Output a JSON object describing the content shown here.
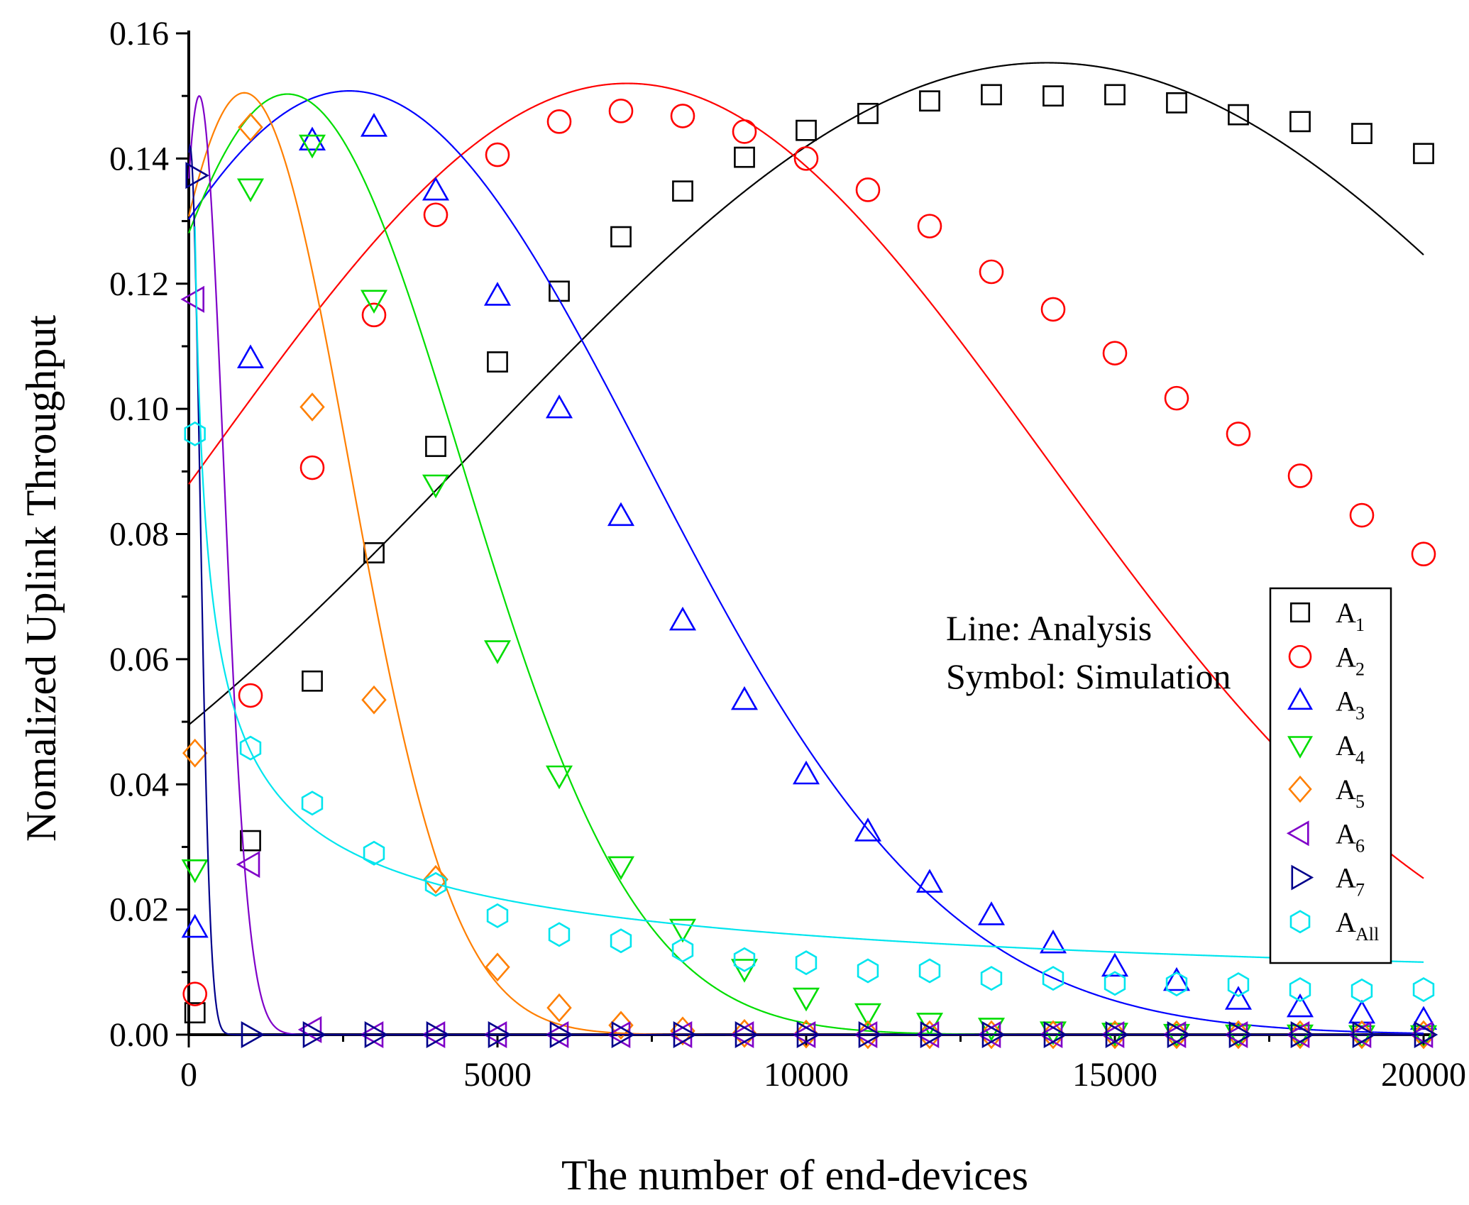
{
  "chart_data": {
    "type": "line",
    "title": "",
    "xlabel": "The number of end-devices",
    "ylabel": "Nomalized Uplink Throughput",
    "xlim": [
      0,
      20000
    ],
    "ylim": [
      0,
      0.16
    ],
    "xticks": [
      0,
      5000,
      10000,
      15000,
      20000
    ],
    "xtick_labels": [
      "0",
      "5000",
      "10000",
      "15000",
      "20000"
    ],
    "yticks": [
      0,
      0.02,
      0.04,
      0.06,
      0.08,
      0.1,
      0.12,
      0.14,
      0.16
    ],
    "ytick_labels": [
      "0.00",
      "0.02",
      "0.04",
      "0.06",
      "0.08",
      "0.10",
      "0.12",
      "0.14",
      "0.16"
    ],
    "legend_position": "right",
    "annotations": [
      "Line: Analysis",
      "Symbol: Simulation"
    ],
    "series": [
      {
        "name": "A1",
        "base": "A",
        "sub": "1",
        "color": "#000000",
        "marker": "square",
        "analysis": {
          "kind": "gauss",
          "peak": 0.1553,
          "center": 13900,
          "width": 13000,
          "cutoff": 0
        },
        "sim_x": [
          100,
          1000,
          2000,
          3000,
          4000,
          5000,
          6000,
          7000,
          8000,
          9000,
          10000,
          11000,
          12000,
          13000,
          14000,
          15000,
          16000,
          17000,
          18000,
          19000,
          20000
        ],
        "sim_y": [
          0.0035,
          0.031,
          0.0565,
          0.077,
          0.094,
          0.1075,
          0.1188,
          0.1275,
          0.1348,
          0.1402,
          0.1445,
          0.1472,
          0.1492,
          0.1502,
          0.15,
          0.1502,
          0.1489,
          0.147,
          0.1459,
          0.144,
          0.1408
        ]
      },
      {
        "name": "A2",
        "base": "A",
        "sub": "2",
        "color": "#ff0000",
        "marker": "circle",
        "analysis": {
          "kind": "gauss",
          "peak": 0.152,
          "center": 7100,
          "width": 9600,
          "cutoff": 0
        },
        "sim_x": [
          100,
          1000,
          2000,
          3000,
          4000,
          5000,
          6000,
          7000,
          8000,
          9000,
          10000,
          11000,
          12000,
          13000,
          14000,
          15000,
          16000,
          17000,
          18000,
          19000,
          20000
        ],
        "sim_y": [
          0.0065,
          0.0542,
          0.0906,
          0.115,
          0.131,
          0.1406,
          0.1459,
          0.1476,
          0.1468,
          0.1443,
          0.14,
          0.135,
          0.1292,
          0.1219,
          0.1159,
          0.1089,
          0.1017,
          0.096,
          0.0893,
          0.083,
          0.0768
        ]
      },
      {
        "name": "A3",
        "base": "A",
        "sub": "3",
        "color": "#0000ff",
        "marker": "triangle-up",
        "analysis": {
          "kind": "gauss",
          "peak": 0.1508,
          "center": 2600,
          "width": 6800,
          "cutoff": 0
        },
        "sim_x": [
          100,
          1000,
          2000,
          3000,
          4000,
          5000,
          6000,
          7000,
          8000,
          9000,
          10000,
          11000,
          12000,
          13000,
          14000,
          15000,
          16000,
          17000,
          18000,
          19000,
          20000
        ],
        "sim_y": [
          0.017,
          0.108,
          0.1428,
          0.145,
          0.1348,
          0.118,
          0.1,
          0.0828,
          0.0661,
          0.0534,
          0.0415,
          0.0324,
          0.0242,
          0.019,
          0.0145,
          0.0108,
          0.0085,
          0.0055,
          0.0043,
          0.0033,
          0.0023
        ]
      },
      {
        "name": "A4",
        "base": "A",
        "sub": "4",
        "color": "#00dd00",
        "marker": "triangle-down",
        "analysis": {
          "kind": "gauss",
          "peak": 0.1503,
          "center": 1600,
          "width": 4000,
          "cutoff": 0
        },
        "sim_x": [
          100,
          1000,
          2000,
          3000,
          4000,
          5000,
          6000,
          7000,
          8000,
          9000,
          10000,
          11000,
          12000,
          13000,
          14000,
          15000,
          16000,
          17000,
          18000,
          19000,
          20000
        ],
        "sim_y": [
          0.0265,
          0.1353,
          0.1423,
          0.1175,
          0.088,
          0.0615,
          0.0415,
          0.027,
          0.017,
          0.0106,
          0.006,
          0.0035,
          0.002,
          0.0012,
          0.0006,
          0.0004,
          0.0002,
          0.0001,
          0.0001,
          0,
          0
        ]
      },
      {
        "name": "A5",
        "base": "A",
        "sub": "5",
        "color": "#ff7f00",
        "marker": "diamond",
        "analysis": {
          "kind": "gauss",
          "peak": 0.1505,
          "center": 900,
          "width": 2400,
          "cutoff": 0
        },
        "sim_x": [
          100,
          1000,
          2000,
          3000,
          4000,
          5000,
          6000,
          7000,
          8000,
          9000,
          10000,
          11000,
          12000,
          13000,
          14000,
          15000,
          16000,
          17000,
          18000,
          19000,
          20000
        ],
        "sim_y": [
          0.045,
          0.145,
          0.1003,
          0.0535,
          0.0248,
          0.0108,
          0.0043,
          0.0015,
          0.0006,
          0.0002,
          0.0001,
          0,
          0,
          0,
          0,
          0,
          0,
          0,
          0,
          0,
          0
        ]
      },
      {
        "name": "A6",
        "base": "A",
        "sub": "6",
        "color": "#7f00c8",
        "marker": "triangle-left",
        "analysis": {
          "kind": "gauss",
          "peak": 0.15,
          "center": 170,
          "width": 560,
          "cutoff": 0
        },
        "sim_x": [
          100,
          1000,
          2000,
          3000,
          4000,
          5000,
          6000,
          7000,
          8000,
          9000,
          10000,
          11000,
          12000,
          13000,
          14000,
          15000,
          16000,
          17000,
          18000,
          19000,
          20000
        ],
        "sim_y": [
          0.1175,
          0.0272,
          0.0008,
          0,
          0,
          0,
          0,
          0,
          0,
          0,
          0,
          0,
          0,
          0,
          0,
          0,
          0,
          0,
          0,
          0,
          0
        ]
      },
      {
        "name": "A7",
        "base": "A",
        "sub": "7",
        "color": "#00008b",
        "marker": "triangle-right",
        "analysis": {
          "kind": "gauss",
          "peak": 0.142,
          "center": 20,
          "width": 230,
          "cutoff": 0
        },
        "sim_x": [
          100,
          1000,
          2000,
          3000,
          4000,
          5000,
          6000,
          7000,
          8000,
          9000,
          10000,
          11000,
          12000,
          13000,
          14000,
          15000,
          16000,
          17000,
          18000,
          19000,
          20000
        ],
        "sim_y": [
          0.1373,
          0,
          0,
          0,
          0,
          0,
          0,
          0,
          0,
          0,
          0,
          0,
          0,
          0,
          0,
          0,
          0,
          0,
          0,
          0,
          0
        ]
      },
      {
        "name": "AAll",
        "base": "A",
        "sub": "All",
        "color": "#00e5ee",
        "marker": "hexagon",
        "analysis": {
          "kind": "power",
          "a": 0.0453,
          "x0": 1000,
          "p": 0.455,
          "xmin": 100
        },
        "sim_x": [
          100,
          1000,
          2000,
          3000,
          4000,
          5000,
          6000,
          7000,
          8000,
          9000,
          10000,
          11000,
          12000,
          13000,
          14000,
          15000,
          16000,
          17000,
          18000,
          19000,
          20000
        ],
        "sim_y": [
          0.096,
          0.0458,
          0.037,
          0.029,
          0.024,
          0.019,
          0.016,
          0.015,
          0.0135,
          0.012,
          0.0115,
          0.0102,
          0.0102,
          0.009,
          0.009,
          0.0082,
          0.0081,
          0.008,
          0.0072,
          0.007,
          0.0072
        ]
      }
    ]
  }
}
